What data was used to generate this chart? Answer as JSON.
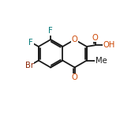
{
  "background_color": "#ffffff",
  "bond_color": "#1a1a1a",
  "atom_colors": {
    "O": "#cc4400",
    "F": "#007777",
    "Br": "#882200",
    "C": "#1a1a1a"
  },
  "bond_lw": 1.3,
  "font_size": 7.2,
  "figsize": [
    1.52,
    1.52
  ],
  "dpi": 100,
  "scale": 1.18
}
